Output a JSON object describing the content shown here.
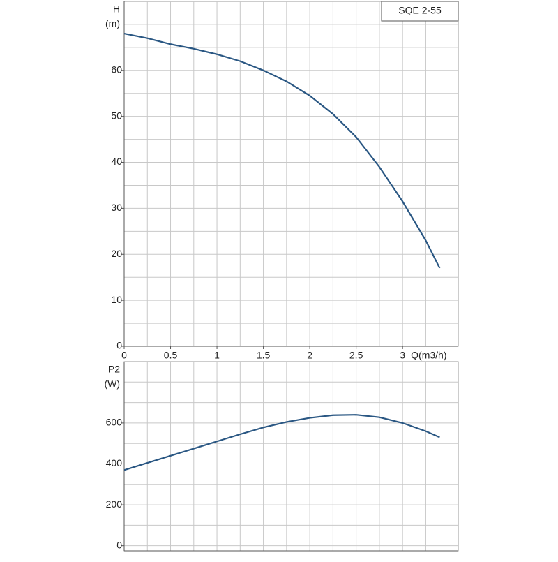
{
  "chart_data": [
    {
      "type": "line",
      "label": "SQE 2-55",
      "x_label": "Q(m3/h)",
      "y_label_top": "H",
      "y_label_unit": "(m)",
      "x": [
        0,
        0.25,
        0.5,
        0.75,
        1,
        1.25,
        1.5,
        1.75,
        2,
        2.25,
        2.5,
        2.75,
        3,
        3.25,
        3.4
      ],
      "series": [
        {
          "color": "#2a5783",
          "values": [
            68,
            67,
            65.7,
            64.7,
            63.5,
            62,
            60,
            57.6,
            54.5,
            50.5,
            45.5,
            39,
            31.5,
            23,
            17
          ]
        }
      ],
      "xlim": [
        0,
        3.6
      ],
      "xticks": [
        0,
        0.5,
        1,
        1.5,
        2,
        2.5,
        3
      ],
      "xgrid": [
        0,
        0.25,
        0.5,
        0.75,
        1,
        1.25,
        1.5,
        1.75,
        2,
        2.25,
        2.5,
        2.75,
        3,
        3.25
      ],
      "ylim": [
        0,
        75
      ],
      "yticks": [
        0,
        10,
        20,
        30,
        40,
        50,
        60
      ],
      "ygrid": [
        0,
        5,
        10,
        15,
        20,
        25,
        30,
        35,
        40,
        45,
        50,
        55,
        60,
        65,
        70
      ]
    },
    {
      "type": "line",
      "y_label_top": "P2",
      "y_label_unit": "(W)",
      "x": [
        0,
        0.25,
        0.5,
        0.75,
        1,
        1.25,
        1.5,
        1.75,
        2,
        2.25,
        2.5,
        2.75,
        3,
        3.25,
        3.4
      ],
      "series": [
        {
          "color": "#2a5783",
          "values": [
            370,
            405,
            440,
            475,
            510,
            545,
            578,
            605,
            625,
            638,
            640,
            628,
            600,
            560,
            530
          ]
        }
      ],
      "xlim": [
        0,
        3.6
      ],
      "xgrid": [
        0,
        0.25,
        0.5,
        0.75,
        1,
        1.25,
        1.5,
        1.75,
        2,
        2.25,
        2.5,
        2.75,
        3,
        3.25
      ],
      "ylim": [
        -25,
        900
      ],
      "yticks": [
        0,
        200,
        400,
        600
      ],
      "ygrid": [
        0,
        100,
        200,
        300,
        400,
        500,
        600,
        700,
        800
      ]
    }
  ]
}
